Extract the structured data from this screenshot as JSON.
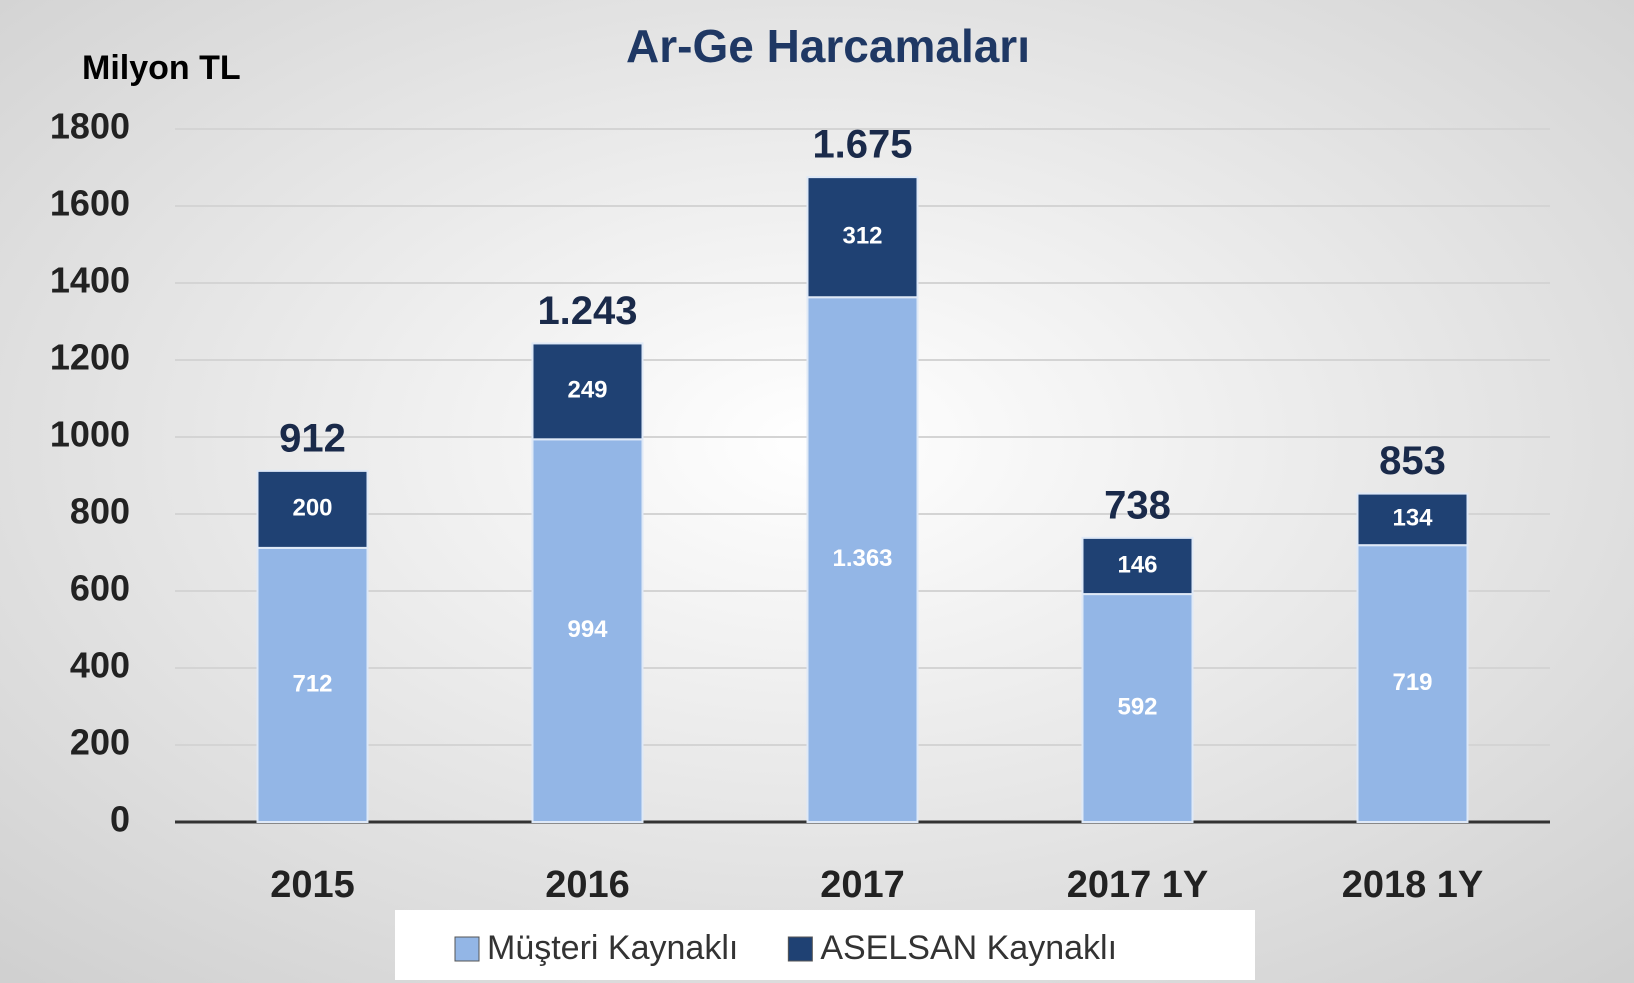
{
  "chart_data": {
    "type": "stacked_bar",
    "title": "Ar-Ge Harcamaları",
    "y_axis_label": "Milyon TL",
    "categories": [
      "2015",
      "2016",
      "2017",
      "2017 1Y",
      "2018 1Y"
    ],
    "series": [
      {
        "name": "Müşteri Kaynaklı",
        "color": "#93b6e6",
        "values": [
          712,
          994,
          1363,
          592,
          719
        ],
        "value_labels": [
          "712",
          "994",
          "1.363",
          "592",
          "719"
        ]
      },
      {
        "name": "ASELSAN Kaynaklı",
        "color": "#1f4173",
        "values": [
          200,
          249,
          312,
          146,
          134
        ]
      }
    ],
    "totals": {
      "values": [
        912,
        1243,
        1675,
        738,
        853
      ],
      "value_labels": [
        "912",
        "1.243",
        "1.675",
        "738",
        "853"
      ]
    },
    "ylim": [
      0,
      1800
    ],
    "yticks": [
      0,
      200,
      400,
      600,
      800,
      1000,
      1200,
      1400,
      1600,
      1800
    ],
    "grid": true,
    "legend": "bottom"
  }
}
